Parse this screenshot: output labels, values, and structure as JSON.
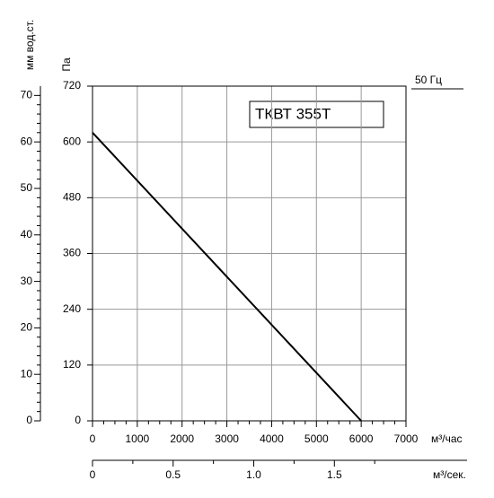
{
  "chart_data": {
    "type": "line",
    "title": "ТКВТ 355Т",
    "frequency_label": "50 Гц",
    "y_label": "Па",
    "y2_label": "мм вод.ст.",
    "x_label": "м³/час",
    "x2_label": "м³/сек.",
    "x": [
      0,
      6000
    ],
    "series": [
      {
        "color": "#000000",
        "values": [
          620,
          0
        ]
      }
    ],
    "xlim": [
      0,
      7000
    ],
    "xticks": [
      0,
      1000,
      2000,
      3000,
      4000,
      5000,
      6000,
      7000
    ],
    "xticks_minor": [
      250,
      500,
      750,
      1250,
      1500,
      1750,
      2250,
      2500,
      2750,
      3250,
      3500,
      3750,
      4250,
      4500,
      4750,
      5250,
      5500,
      5750,
      6250,
      6500,
      6750
    ],
    "ylim": [
      0,
      720
    ],
    "yticks": [
      0,
      120,
      240,
      360,
      480,
      600,
      720
    ],
    "y2lim": [
      0,
      72
    ],
    "y2ticks": [
      0,
      10,
      20,
      30,
      40,
      50,
      60,
      70
    ],
    "y2ticks_minor": [
      2,
      4,
      6,
      8,
      12,
      14,
      16,
      18,
      22,
      24,
      26,
      28,
      32,
      34,
      36,
      38,
      42,
      44,
      46,
      48,
      52,
      54,
      56,
      58,
      62,
      64,
      66,
      68
    ],
    "x2lim": [
      0,
      1.944
    ],
    "x2ticks": [
      0,
      0.5,
      {
        "value": 1,
        "label": "1.0"
      },
      1.5
    ],
    "x2ticks_minor": [
      0.25,
      0.75,
      1.25,
      1.75
    ],
    "grid": true
  }
}
